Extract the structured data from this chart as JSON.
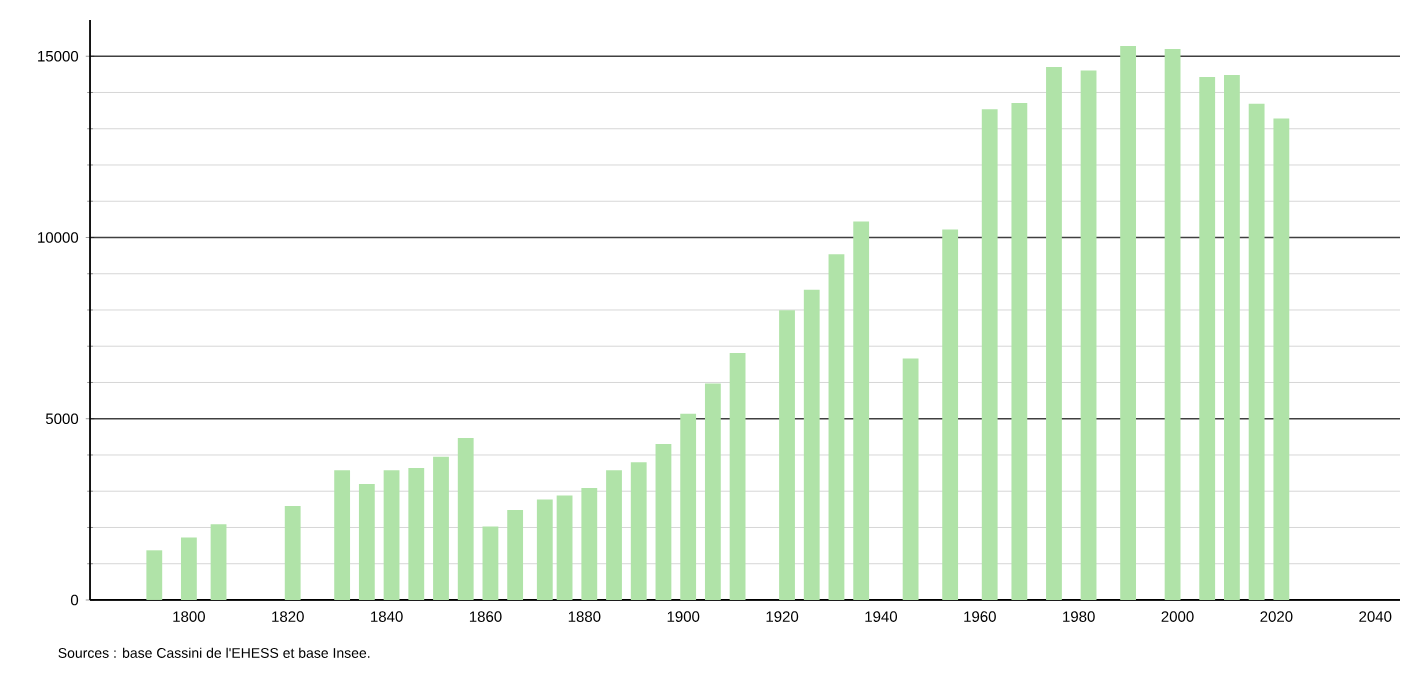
{
  "chart_data": {
    "type": "bar",
    "x": [
      1793,
      1800,
      1806,
      1821,
      1831,
      1836,
      1841,
      1846,
      1851,
      1856,
      1861,
      1866,
      1872,
      1876,
      1881,
      1886,
      1891,
      1896,
      1901,
      1906,
      1911,
      1921,
      1926,
      1931,
      1936,
      1946,
      1954,
      1962,
      1968,
      1975,
      1982,
      1990,
      1999,
      2006,
      2011,
      2016,
      2021
    ],
    "values": [
      1370,
      1720,
      2090,
      2590,
      3580,
      3200,
      3580,
      3640,
      3950,
      4470,
      2030,
      2480,
      2770,
      2880,
      3090,
      3580,
      3800,
      4300,
      5140,
      5970,
      6810,
      7990,
      8560,
      9540,
      10440,
      6660,
      10220,
      13540,
      13710,
      14700,
      14610,
      15280,
      15200,
      14430,
      14480,
      13690,
      13280
    ],
    "color": "#b0e3a8",
    "xlim": [
      1780,
      2045
    ],
    "ylim": [
      0,
      16000
    ],
    "xticks": [
      1800,
      1820,
      1840,
      1860,
      1880,
      1900,
      1920,
      1940,
      1960,
      1980,
      2000,
      2020,
      2040
    ],
    "yticks": [
      0,
      5000,
      10000,
      15000
    ],
    "grid": "y",
    "annotations": [
      "Sources : base Cassini de l'EHESS et base Insee."
    ]
  }
}
